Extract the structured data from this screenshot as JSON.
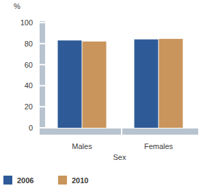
{
  "chart_data": {
    "type": "bar",
    "ylabel": "%",
    "xlabel": "Sex",
    "categories": [
      "Males",
      "Females"
    ],
    "series": [
      {
        "name": "2006",
        "color": "#2e5b98",
        "values": [
          83,
          84
        ]
      },
      {
        "name": "2010",
        "color": "#c9955c",
        "values": [
          82,
          84.5
        ]
      }
    ],
    "ylim": [
      0,
      100
    ],
    "yticks": [
      0,
      20,
      40,
      60,
      80,
      100
    ],
    "grid": false,
    "legend": "bottom"
  }
}
